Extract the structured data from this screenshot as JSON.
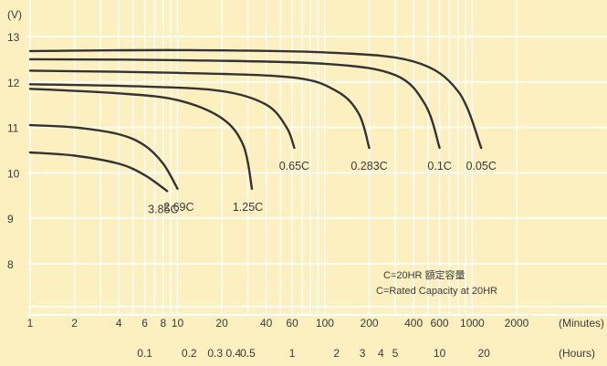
{
  "chart_data": {
    "type": "line",
    "title": "",
    "ylabel": "(V)",
    "xlabel_minutes": "(Minutes)",
    "xlabel_hours": "(Hours)",
    "y_scale": "linear",
    "ylim": [
      7.5,
      13.5
    ],
    "y_ticks": [
      8,
      9,
      10,
      11,
      12,
      13
    ],
    "x_scale": "log",
    "x_unit": "minutes",
    "xlim": [
      1,
      2000
    ],
    "x_ticks_minutes": [
      {
        "value": 1,
        "label": "1"
      },
      {
        "value": 2,
        "label": "2"
      },
      {
        "value": 4,
        "label": "4"
      },
      {
        "value": 6,
        "label": "6"
      },
      {
        "value": 8,
        "label": "8"
      },
      {
        "value": 10,
        "label": "10"
      },
      {
        "value": 20,
        "label": "20"
      },
      {
        "value": 40,
        "label": "40"
      },
      {
        "value": 60,
        "label": "60"
      },
      {
        "value": 100,
        "label": "100"
      },
      {
        "value": 200,
        "label": "200"
      },
      {
        "value": 400,
        "label": "400"
      },
      {
        "value": 600,
        "label": "600"
      },
      {
        "value": 1000,
        "label": "1000"
      },
      {
        "value": 2000,
        "label": "2000"
      }
    ],
    "x_ticks_hours": [
      {
        "value": 6,
        "label": "0.1"
      },
      {
        "value": 12,
        "label": "0.2"
      },
      {
        "value": 18,
        "label": "0.3"
      },
      {
        "value": 24,
        "label": "0.4"
      },
      {
        "value": 30,
        "label": "0.5"
      },
      {
        "value": 60,
        "label": "1"
      },
      {
        "value": 120,
        "label": "2"
      },
      {
        "value": 180,
        "label": "3"
      },
      {
        "value": 240,
        "label": "4"
      },
      {
        "value": 300,
        "label": "5"
      },
      {
        "value": 600,
        "label": "10"
      },
      {
        "value": 1200,
        "label": "20"
      }
    ],
    "grid": true,
    "series": [
      {
        "name": "3.85C",
        "x": [
          1,
          2,
          4,
          6,
          8.5
        ],
        "y": [
          10.45,
          10.38,
          10.2,
          9.95,
          9.6
        ]
      },
      {
        "name": "2.69C",
        "x": [
          1,
          2,
          4,
          6,
          8,
          10
        ],
        "y": [
          11.05,
          11.0,
          10.85,
          10.6,
          10.2,
          9.65
        ]
      },
      {
        "name": "1.25C",
        "x": [
          1,
          4,
          10,
          20,
          28,
          32
        ],
        "y": [
          11.85,
          11.75,
          11.6,
          11.2,
          10.6,
          9.65
        ]
      },
      {
        "name": "0.65C",
        "x": [
          1,
          6,
          20,
          40,
          55,
          62
        ],
        "y": [
          11.95,
          11.9,
          11.8,
          11.5,
          11.0,
          10.55
        ]
      },
      {
        "name": "0.283C",
        "x": [
          1,
          10,
          60,
          120,
          170,
          200
        ],
        "y": [
          12.25,
          12.2,
          12.1,
          11.8,
          11.3,
          10.55
        ]
      },
      {
        "name": "0.1C",
        "x": [
          1,
          10,
          100,
          300,
          480,
          600
        ],
        "y": [
          12.5,
          12.48,
          12.4,
          12.15,
          11.5,
          10.55
        ]
      },
      {
        "name": "0.05C",
        "x": [
          1,
          10,
          100,
          400,
          800,
          1150
        ],
        "y": [
          12.68,
          12.7,
          12.65,
          12.45,
          11.8,
          10.55
        ]
      }
    ],
    "label_anchor_minutes": {
      "3.85C": 8.0,
      "2.69C": 10.2,
      "1.25C": 30,
      "0.65C": 62,
      "0.283C": 200,
      "0.1C": 600,
      "0.05C": 1150
    },
    "annotations": [
      "C=20HR 額定容量",
      "C=Rated Capacity at 20HR"
    ],
    "colors": {
      "background": "#fcefc0",
      "grid": "#ffffff",
      "curve": "#333333",
      "text": "#3a3a3a"
    }
  }
}
